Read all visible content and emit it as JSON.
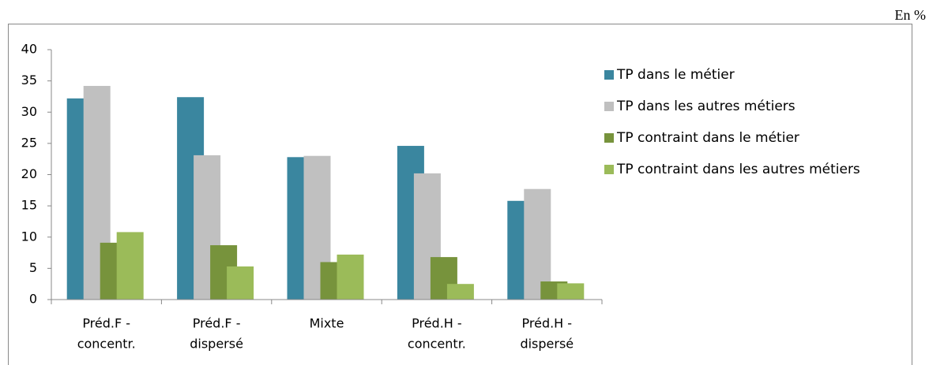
{
  "chart_data": {
    "type": "bar",
    "unit_note": "En %",
    "categories": [
      [
        "Préd.F -",
        "concentr."
      ],
      [
        "Préd.F -",
        "dispersé"
      ],
      [
        "Mixte"
      ],
      [
        "Préd.H -",
        "concentr."
      ],
      [
        "Préd.H -",
        "dispersé"
      ]
    ],
    "series": [
      {
        "name": "TP dans le métier",
        "color": "#3a869f",
        "values": [
          32.2,
          32.4,
          22.8,
          24.6,
          15.8
        ]
      },
      {
        "name": "TP dans les autres métiers",
        "color": "#c0c0c0",
        "values": [
          34.2,
          23.1,
          23.0,
          20.2,
          17.7
        ]
      },
      {
        "name": "TP contraint dans le métier",
        "color": "#77933c",
        "values": [
          9.1,
          8.7,
          6.0,
          6.8,
          2.9
        ]
      },
      {
        "name": "TP contraint dans les autres métiers",
        "color": "#9bbb59",
        "values": [
          10.8,
          5.3,
          7.2,
          2.5,
          2.6
        ]
      }
    ],
    "ylim": [
      0,
      40
    ],
    "yticks": [
      0,
      5,
      10,
      15,
      20,
      25,
      30,
      35,
      40
    ],
    "legend": "right"
  }
}
